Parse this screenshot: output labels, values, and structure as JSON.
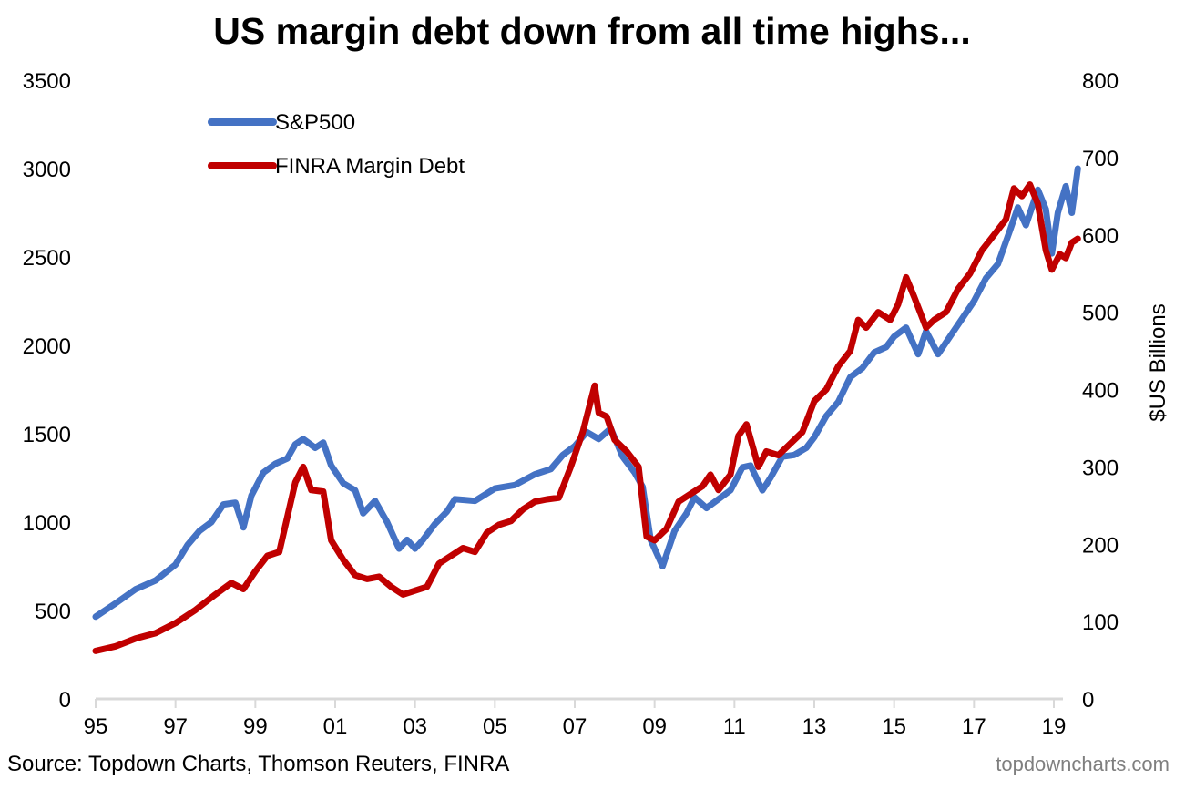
{
  "chart_data": {
    "type": "line",
    "title": "US margin debt down from all time highs...",
    "xlabel": "",
    "ylabel_left": "",
    "ylabel_right": "$US Billions",
    "x_tick_labels": [
      "95",
      "97",
      "99",
      "01",
      "03",
      "05",
      "07",
      "09",
      "11",
      "13",
      "15",
      "17",
      "19"
    ],
    "x_tick_years": [
      1995,
      1997,
      1999,
      2001,
      2003,
      2005,
      2007,
      2009,
      2011,
      2013,
      2015,
      2017,
      2019
    ],
    "xlim": [
      1995,
      2019.6
    ],
    "ylim_left": [
      0,
      3500
    ],
    "ylim_right": [
      0,
      800
    ],
    "y_left_ticks": [
      "0",
      "500",
      "1000",
      "1500",
      "2000",
      "2500",
      "3000",
      "3500"
    ],
    "y_right_ticks": [
      "0",
      "100",
      "200",
      "300",
      "400",
      "500",
      "600",
      "700",
      "800"
    ],
    "grid": false,
    "legend_position": "top-left",
    "source": "Source: Topdown Charts, Thomson Reuters, FINRA",
    "watermark": "topdowncharts.com",
    "colors": {
      "sp500": "#4472C4",
      "margin_debt": "#C00000",
      "axis": "#d9d9d9"
    },
    "series": [
      {
        "name": "S&P500",
        "axis": "left",
        "x": [
          1995.0,
          1995.5,
          1996.0,
          1996.5,
          1997.0,
          1997.3,
          1997.6,
          1997.9,
          1998.2,
          1998.5,
          1998.7,
          1998.9,
          1999.2,
          1999.5,
          1999.8,
          2000.0,
          2000.2,
          2000.5,
          2000.7,
          2000.9,
          2001.2,
          2001.5,
          2001.7,
          2002.0,
          2002.3,
          2002.6,
          2002.8,
          2003.0,
          2003.2,
          2003.5,
          2003.8,
          2004.0,
          2004.5,
          2005.0,
          2005.5,
          2006.0,
          2006.4,
          2006.7,
          2007.0,
          2007.3,
          2007.6,
          2007.9,
          2008.2,
          2008.5,
          2008.7,
          2008.9,
          2009.2,
          2009.5,
          2009.8,
          2010.0,
          2010.3,
          2010.6,
          2010.9,
          2011.2,
          2011.4,
          2011.7,
          2011.9,
          2012.2,
          2012.5,
          2012.8,
          2013.0,
          2013.3,
          2013.6,
          2013.9,
          2014.2,
          2014.5,
          2014.8,
          2015.0,
          2015.3,
          2015.6,
          2015.8,
          2016.1,
          2016.4,
          2016.7,
          2017.0,
          2017.3,
          2017.6,
          2017.9,
          2018.1,
          2018.3,
          2018.6,
          2018.8,
          2018.95,
          2019.1,
          2019.3,
          2019.45,
          2019.6
        ],
        "values": [
          465,
          540,
          620,
          670,
          760,
          870,
          950,
          1000,
          1100,
          1110,
          970,
          1150,
          1280,
          1330,
          1360,
          1440,
          1470,
          1420,
          1450,
          1320,
          1220,
          1180,
          1050,
          1120,
          1000,
          850,
          900,
          850,
          900,
          990,
          1060,
          1130,
          1120,
          1190,
          1210,
          1270,
          1300,
          1380,
          1430,
          1510,
          1470,
          1530,
          1370,
          1280,
          1200,
          900,
          750,
          950,
          1050,
          1140,
          1080,
          1130,
          1180,
          1310,
          1320,
          1180,
          1250,
          1370,
          1380,
          1420,
          1480,
          1600,
          1680,
          1820,
          1870,
          1960,
          1990,
          2050,
          2100,
          1950,
          2080,
          1950,
          2050,
          2150,
          2250,
          2380,
          2460,
          2650,
          2780,
          2680,
          2880,
          2770,
          2520,
          2750,
          2900,
          2750,
          3000
        ]
      },
      {
        "name": "FINRA Margin Debt",
        "axis": "right",
        "x": [
          1995.0,
          1995.5,
          1996.0,
          1996.5,
          1997.0,
          1997.5,
          1998.0,
          1998.4,
          1998.7,
          1999.0,
          1999.3,
          1999.6,
          2000.0,
          2000.2,
          2000.4,
          2000.7,
          2000.9,
          2001.2,
          2001.5,
          2001.8,
          2002.1,
          2002.4,
          2002.7,
          2003.0,
          2003.3,
          2003.6,
          2003.9,
          2004.2,
          2004.5,
          2004.8,
          2005.1,
          2005.4,
          2005.7,
          2006.0,
          2006.3,
          2006.6,
          2006.9,
          2007.2,
          2007.5,
          2007.6,
          2007.8,
          2008.0,
          2008.3,
          2008.6,
          2008.8,
          2009.0,
          2009.3,
          2009.6,
          2009.9,
          2010.2,
          2010.4,
          2010.6,
          2010.9,
          2011.1,
          2011.3,
          2011.6,
          2011.8,
          2012.1,
          2012.4,
          2012.7,
          2013.0,
          2013.3,
          2013.6,
          2013.9,
          2014.1,
          2014.3,
          2014.6,
          2014.9,
          2015.1,
          2015.3,
          2015.5,
          2015.8,
          2016.0,
          2016.3,
          2016.6,
          2016.9,
          2017.2,
          2017.5,
          2017.8,
          2018.0,
          2018.2,
          2018.4,
          2018.6,
          2018.8,
          2018.95,
          2019.15,
          2019.3,
          2019.45,
          2019.6
        ],
        "values": [
          62,
          68,
          78,
          85,
          98,
          115,
          135,
          150,
          142,
          165,
          185,
          190,
          280,
          300,
          270,
          268,
          205,
          180,
          160,
          155,
          158,
          145,
          135,
          140,
          145,
          175,
          185,
          195,
          190,
          215,
          225,
          230,
          245,
          255,
          258,
          260,
          300,
          345,
          405,
          370,
          365,
          335,
          320,
          300,
          210,
          205,
          220,
          255,
          265,
          275,
          290,
          270,
          290,
          340,
          355,
          300,
          320,
          315,
          330,
          345,
          385,
          400,
          430,
          450,
          490,
          480,
          500,
          490,
          510,
          545,
          520,
          480,
          490,
          500,
          530,
          550,
          580,
          600,
          620,
          660,
          650,
          665,
          640,
          580,
          555,
          575,
          570,
          590,
          595
        ]
      }
    ]
  }
}
